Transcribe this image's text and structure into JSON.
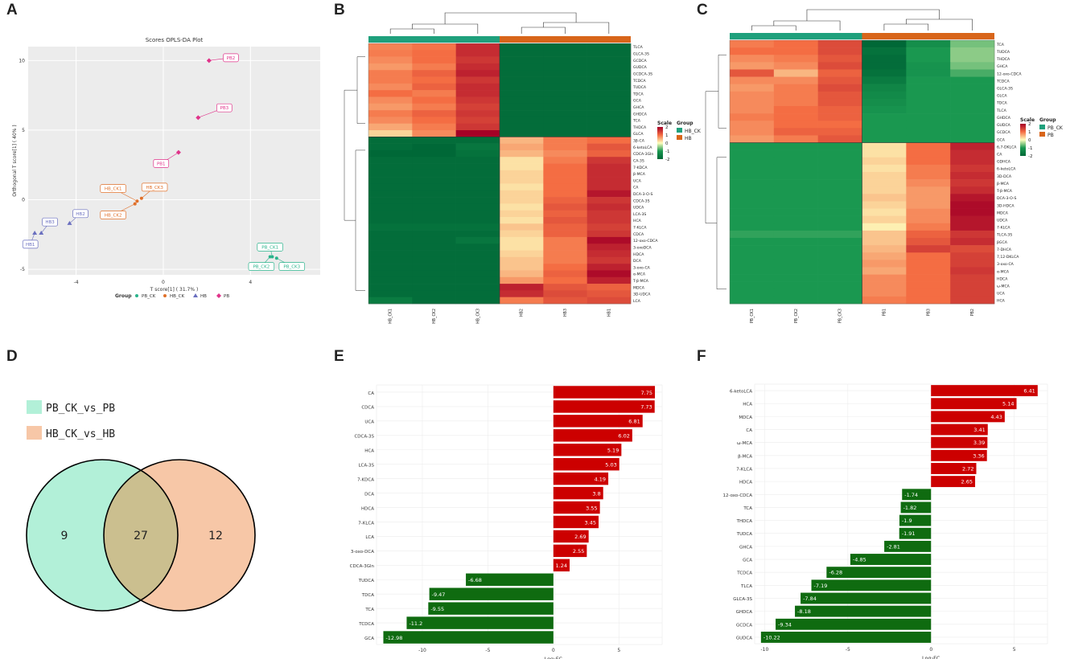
{
  "panels": {
    "A": "A",
    "B": "B",
    "C": "C",
    "D": "D",
    "E": "E",
    "F": "F"
  },
  "colors": {
    "pb_ck": "#2ab38b",
    "hb_ck": "#e0702a",
    "hb": "#6a6fbf",
    "pb": "#e0338a",
    "group_teal": "#1fa07c",
    "group_orange": "#d8651a",
    "bar_red": "#cc0000",
    "bar_green": "#0f6b10",
    "venn_left": "#b2f0d8",
    "venn_right": "#f7c7a7",
    "venn_overlap": "#cbbf8f"
  },
  "chart_data": [
    {
      "id": "A",
      "type": "scatter",
      "title": "Scores OPLS-DA Plot",
      "xlabel": "T score[1] ( 31.7% )",
      "ylabel": "Orthogonal T score[1] ( 40% )",
      "xlim": [
        -6.2,
        7.2
      ],
      "ylim": [
        -5.4,
        11.0
      ],
      "xticks": [
        "-4",
        "0",
        "4"
      ],
      "xtick_values": [
        -4,
        0,
        4
      ],
      "yticks": [
        "-5",
        "0",
        "5",
        "10"
      ],
      "ytick_values": [
        -5,
        0,
        5,
        10
      ],
      "legend_title": "Group",
      "legend": [
        "PB_CK",
        "HB_CK",
        "HB",
        "PB"
      ],
      "points": [
        {
          "label": "PB1",
          "group": "PB",
          "x": 0.7,
          "y": 3.4,
          "lx": -0.1,
          "ly": 2.6
        },
        {
          "label": "PB2",
          "group": "PB",
          "x": 2.1,
          "y": 10.0,
          "lx": 3.1,
          "ly": 10.2
        },
        {
          "label": "PB3",
          "group": "PB",
          "x": 1.6,
          "y": 5.9,
          "lx": 2.8,
          "ly": 6.6
        },
        {
          "label": "HB1",
          "group": "HB",
          "x": -5.9,
          "y": -2.4,
          "lx": -6.1,
          "ly": -3.2
        },
        {
          "label": "HB2",
          "group": "HB",
          "x": -4.3,
          "y": -1.7,
          "lx": -3.8,
          "ly": -1.0
        },
        {
          "label": "HB3",
          "group": "HB",
          "x": -5.6,
          "y": -2.4,
          "lx": -5.2,
          "ly": -1.6
        },
        {
          "label": "HB_CK1",
          "group": "HB_CK",
          "x": -1.2,
          "y": -0.1,
          "lx": -2.3,
          "ly": 0.8
        },
        {
          "label": "HB_CK2",
          "group": "HB_CK",
          "x": -1.3,
          "y": -0.3,
          "lx": -2.3,
          "ly": -1.1
        },
        {
          "label": "HB_CK3",
          "group": "HB_CK",
          "x": -1.0,
          "y": 0.1,
          "lx": -0.4,
          "ly": 0.9
        },
        {
          "label": "PB_CK1",
          "group": "PB_CK",
          "x": 5.0,
          "y": -4.1,
          "lx": 4.9,
          "ly": -3.4
        },
        {
          "label": "PB_CK2",
          "group": "PB_CK",
          "x": 4.9,
          "y": -4.1,
          "lx": 4.5,
          "ly": -4.8
        },
        {
          "label": "PB_CK3",
          "group": "PB_CK",
          "x": 5.2,
          "y": -4.2,
          "lx": 5.9,
          "ly": -4.8
        }
      ]
    },
    {
      "id": "B",
      "type": "heatmap",
      "groups": [
        "HB_CK",
        "HB"
      ],
      "columns": [
        "HB_CK1",
        "HB_CK2",
        "HB_CK3",
        "HB2",
        "HB3",
        "HB1"
      ],
      "rows": [
        "TLCA",
        "GLCA-3S",
        "GCDCA",
        "GUDCA",
        "GCDCA-3S",
        "TCDCA",
        "TUDCA",
        "TDCA",
        "GCA",
        "GHCA",
        "GHDCA",
        "TCA",
        "THDCA",
        "GLCA",
        "3β-CA",
        "6-ketoLCA",
        "CDCA-3Gln",
        "CA-3S",
        "7-KDCA",
        "β-MCA",
        "UCA",
        "CA",
        "DCA-3-O-S",
        "CDCA-3S",
        "UDCA",
        "LCA-3S",
        "HCA",
        "7-KLCA",
        "CDCA",
        "12-oxo-CDCA",
        "3-oxoDCA",
        "HDCA",
        "DCA",
        "3-oxo-CA",
        "α-MCA",
        "T-β-MCA",
        "MDCA",
        "3D-UDCA",
        "LCA"
      ],
      "values": [
        [
          0.85,
          0.95,
          1.6,
          -1.9,
          -1.9,
          -1.9
        ],
        [
          0.9,
          1.0,
          1.6,
          -1.9,
          -1.9,
          -1.9
        ],
        [
          0.8,
          1.0,
          1.5,
          -1.9,
          -1.9,
          -1.9
        ],
        [
          0.7,
          0.9,
          1.6,
          -1.9,
          -1.9,
          -1.9
        ],
        [
          0.9,
          1.1,
          1.7,
          -1.9,
          -1.9,
          -1.9
        ],
        [
          0.9,
          1.0,
          1.5,
          -1.9,
          -1.9,
          -1.9
        ],
        [
          0.8,
          1.1,
          1.6,
          -1.9,
          -1.9,
          -1.9
        ],
        [
          1.0,
          0.9,
          1.6,
          -1.9,
          -1.9,
          -1.9
        ],
        [
          0.8,
          1.0,
          1.5,
          -1.9,
          -1.9,
          -1.9
        ],
        [
          0.7,
          0.9,
          1.4,
          -1.9,
          -1.9,
          -1.9
        ],
        [
          0.9,
          1.1,
          1.5,
          -1.9,
          -1.9,
          -1.9
        ],
        [
          0.8,
          1.0,
          1.4,
          -1.9,
          -1.9,
          -1.9
        ],
        [
          0.6,
          0.9,
          1.5,
          -1.9,
          -1.9,
          -1.9
        ],
        [
          0.3,
          0.8,
          2.0,
          -1.9,
          -1.9,
          -1.9
        ],
        [
          -1.9,
          -1.9,
          -1.9,
          0.5,
          0.9,
          1.0
        ],
        [
          -1.9,
          -2.0,
          -1.7,
          0.6,
          0.9,
          1.2
        ],
        [
          -2.0,
          -2.1,
          -1.8,
          0.5,
          0.8,
          1.1
        ],
        [
          -1.9,
          -1.9,
          -1.9,
          0.2,
          0.9,
          1.5
        ],
        [
          -1.9,
          -1.9,
          -1.9,
          0.2,
          1.0,
          1.6
        ],
        [
          -1.9,
          -1.9,
          -1.9,
          0.3,
          1.0,
          1.6
        ],
        [
          -1.9,
          -1.9,
          -1.9,
          0.3,
          1.0,
          1.6
        ],
        [
          -1.9,
          -1.9,
          -1.9,
          0.2,
          1.0,
          1.6
        ],
        [
          -1.9,
          -1.9,
          -1.9,
          0.3,
          1.0,
          1.8
        ],
        [
          -1.9,
          -1.9,
          -1.9,
          0.3,
          1.1,
          1.5
        ],
        [
          -1.9,
          -1.9,
          -1.9,
          0.2,
          1.2,
          1.6
        ],
        [
          -1.9,
          -1.9,
          -1.9,
          0.3,
          1.1,
          1.5
        ],
        [
          -1.9,
          -1.9,
          -1.9,
          0.2,
          1.2,
          1.5
        ],
        [
          -1.8,
          -1.8,
          -1.8,
          0.4,
          1.1,
          1.4
        ],
        [
          -1.9,
          -1.9,
          -1.9,
          0.3,
          1.1,
          1.5
        ],
        [
          -1.9,
          -1.9,
          -1.7,
          0.2,
          0.9,
          1.9
        ],
        [
          -1.9,
          -1.9,
          -1.9,
          0.2,
          0.9,
          1.7
        ],
        [
          -1.9,
          -1.9,
          -1.9,
          0.3,
          0.9,
          1.6
        ],
        [
          -1.9,
          -1.9,
          -1.9,
          0.4,
          0.9,
          1.5
        ],
        [
          -1.9,
          -1.9,
          -1.9,
          0.4,
          1.0,
          1.7
        ],
        [
          -1.9,
          -1.9,
          -1.9,
          0.5,
          1.1,
          1.9
        ],
        [
          -1.9,
          -1.9,
          -1.9,
          0.7,
          1.0,
          1.7
        ],
        [
          -1.9,
          -1.9,
          -1.9,
          1.7,
          1.2,
          1.1
        ],
        [
          -1.9,
          -1.9,
          -1.9,
          1.6,
          1.3,
          1.2
        ],
        [
          -1.6,
          -1.9,
          -1.9,
          0.9,
          1.2,
          1.3
        ]
      ],
      "scale_title": "Scale",
      "scale_ticks": [
        "2",
        "1",
        "0",
        "-1",
        "-2"
      ],
      "legend_title": "Group"
    },
    {
      "id": "C",
      "type": "heatmap",
      "groups": [
        "PB_CK",
        "PB"
      ],
      "columns": [
        "PB_CK1",
        "PB_CK2",
        "PB_CK3",
        "PB1",
        "PB3",
        "PB2"
      ],
      "rows": [
        "TCA",
        "TUDCA",
        "THDCA",
        "GHCA",
        "12-oxo-CDCA",
        "TCDCA",
        "GLCA-3S",
        "GLCA",
        "TDCA",
        "TLCA",
        "GHDCA",
        "GUDCA",
        "GCDCA",
        "GCA",
        "6,7-DKLCA",
        "CA",
        "GDHCA",
        "6-ketoLCA",
        "3D-DCA",
        "β-MCA",
        "T-β-MCA",
        "DCA-3-O-S",
        "3D-HDCA",
        "MDCA",
        "UDCA",
        "7-KLCA",
        "TLCA-3S",
        "βGCA",
        "7-DHCA",
        "7,12-DKLCA",
        "3-oxo-CA",
        "α-MCA",
        "HDCA",
        "ω-MCA",
        "UCA",
        "HCA"
      ],
      "values": [
        [
          0.9,
          1.0,
          1.3,
          -2.0,
          -1.2,
          -0.6
        ],
        [
          1.0,
          1.0,
          1.3,
          -1.8,
          -1.0,
          -0.5
        ],
        [
          0.8,
          0.9,
          1.2,
          -1.9,
          -1.0,
          -0.5
        ],
        [
          0.7,
          0.8,
          1.3,
          -1.9,
          -1.1,
          -0.6
        ],
        [
          1.2,
          0.5,
          1.1,
          -1.8,
          -1.1,
          -0.8
        ],
        [
          0.8,
          0.8,
          1.2,
          -1.6,
          -1.0,
          -1.0
        ],
        [
          0.7,
          0.9,
          1.3,
          -1.4,
          -1.0,
          -1.0
        ],
        [
          0.8,
          0.9,
          1.2,
          -1.3,
          -1.0,
          -1.0
        ],
        [
          0.8,
          0.9,
          1.2,
          -1.2,
          -1.0,
          -1.0
        ],
        [
          0.8,
          1.0,
          1.1,
          -1.1,
          -1.0,
          -1.0
        ],
        [
          0.9,
          1.0,
          1.1,
          -1.0,
          -1.0,
          -1.0
        ],
        [
          0.8,
          1.0,
          1.0,
          -1.0,
          -1.0,
          -1.0
        ],
        [
          0.8,
          1.1,
          1.1,
          -1.0,
          -1.0,
          -1.0
        ],
        [
          0.7,
          0.9,
          1.2,
          -1.0,
          -1.0,
          -1.0
        ],
        [
          -1.0,
          -1.0,
          -1.0,
          0.2,
          1.0,
          1.7
        ],
        [
          -1.0,
          -1.0,
          -1.0,
          0.2,
          1.0,
          1.6
        ],
        [
          -1.0,
          -1.0,
          -1.0,
          0.3,
          1.0,
          1.6
        ],
        [
          -1.0,
          -1.0,
          -1.0,
          0.2,
          0.9,
          1.5
        ],
        [
          -1.0,
          -1.0,
          -1.0,
          0.3,
          0.9,
          1.6
        ],
        [
          -1.0,
          -1.0,
          -1.0,
          0.3,
          0.8,
          1.5
        ],
        [
          -1.0,
          -1.0,
          -1.0,
          0.3,
          0.7,
          1.6
        ],
        [
          -1.0,
          -1.0,
          -1.0,
          0.4,
          0.7,
          1.8
        ],
        [
          -1.0,
          -1.0,
          -1.0,
          0.3,
          0.7,
          1.9
        ],
        [
          -1.0,
          -1.0,
          -1.0,
          0.2,
          0.8,
          1.9
        ],
        [
          -1.0,
          -1.0,
          -1.0,
          0.3,
          0.8,
          1.8
        ],
        [
          -1.0,
          -1.0,
          -1.0,
          0.1,
          0.9,
          1.8
        ],
        [
          -0.9,
          -0.9,
          -0.9,
          0.4,
          1.1,
          1.5
        ],
        [
          -1.0,
          -1.0,
          -1.0,
          0.4,
          1.2,
          1.6
        ],
        [
          -1.0,
          -1.0,
          -1.0,
          0.5,
          1.4,
          1.3
        ],
        [
          -1.0,
          -1.0,
          -1.0,
          0.6,
          1.0,
          1.4
        ],
        [
          -1.0,
          -1.0,
          -1.0,
          0.7,
          1.0,
          1.4
        ],
        [
          -1.0,
          -1.0,
          -1.0,
          0.6,
          1.0,
          1.5
        ],
        [
          -1.0,
          -1.0,
          -1.0,
          0.8,
          1.0,
          1.4
        ],
        [
          -1.0,
          -1.0,
          -1.0,
          0.8,
          1.0,
          1.4
        ],
        [
          -1.0,
          -1.0,
          -1.0,
          0.8,
          1.0,
          1.4
        ],
        [
          -1.0,
          -1.0,
          -1.0,
          0.9,
          1.0,
          1.4
        ]
      ],
      "scale_title": "Scale",
      "scale_ticks": [
        "2",
        "1",
        "0",
        "-1",
        "-2"
      ],
      "legend_title": "Group"
    },
    {
      "id": "E",
      "type": "bar",
      "orientation": "horizontal",
      "categories": [
        "CA",
        "CDCA",
        "UCA",
        "CDCA-3S",
        "HCA",
        "LCA-3S",
        "7-KDCA",
        "DCA",
        "HDCA",
        "7-KLCA",
        "LCA",
        "3-oxo-DCA",
        "CDCA-3Gln",
        "TUDCA",
        "TDCA",
        "TCA",
        "TCDCA",
        "GCA"
      ],
      "values": [
        7.75,
        7.73,
        6.81,
        6.02,
        5.19,
        5.03,
        4.19,
        3.8,
        3.55,
        3.45,
        2.69,
        2.55,
        1.24,
        -6.68,
        -9.47,
        -9.55,
        -11.2,
        -12.98
      ],
      "labels": [
        "7.75",
        "7.73",
        "6.81",
        "6.02",
        "5.19",
        "5.03",
        "4.19",
        "3.8",
        "3.55",
        "3.45",
        "2.69",
        "2.55",
        "1.24",
        "-6.68",
        "-9.47",
        "-9.55",
        "-11.2",
        "-12.98"
      ],
      "xlabel": "Log₂FC",
      "xlim": [
        -13.5,
        8.3
      ],
      "xticks": [
        "-10",
        "-5",
        "0",
        "5"
      ],
      "xtick_values": [
        -10,
        -5,
        0,
        5
      ]
    },
    {
      "id": "F",
      "type": "bar",
      "orientation": "horizontal",
      "categories": [
        "6-ketoLCA",
        "HCA",
        "MDCA",
        "CA",
        "ω-MCA",
        "β-MCA",
        "7-KLCA",
        "HDCA",
        "12-oxo-CDCA",
        "TCA",
        "THDCA",
        "TUDCA",
        "GHCA",
        "GCA",
        "TCDCA",
        "TLCA",
        "GLCA-3S",
        "GHDCA",
        "GCDCA",
        "GUDCA"
      ],
      "values": [
        6.41,
        5.14,
        4.43,
        3.41,
        3.39,
        3.36,
        2.72,
        2.65,
        -1.74,
        -1.82,
        -1.9,
        -1.91,
        -2.81,
        -4.85,
        -6.28,
        -7.19,
        -7.84,
        -8.18,
        -9.34,
        -10.22
      ],
      "labels": [
        "6.41",
        "5.14",
        "4.43",
        "3.41",
        "3.39",
        "3.36",
        "2.72",
        "2.65",
        "-1.74",
        "-1.82",
        "-1.9",
        "-1.91",
        "-2.81",
        "-4.85",
        "-6.28",
        "-7.19",
        "-7.84",
        "-8.18",
        "-9.34",
        "-10.22"
      ],
      "xlabel": "Log₂FC",
      "xlim": [
        -10.6,
        7.0
      ],
      "xticks": [
        "-10",
        "-5",
        "0",
        "5"
      ],
      "xtick_values": [
        -10,
        -5,
        0,
        5
      ]
    }
  ],
  "venn": {
    "sets": [
      "PB_CK_vs_PB",
      "HB_CK_vs_HB"
    ],
    "left_only": "9",
    "overlap": "27",
    "right_only": "12"
  }
}
